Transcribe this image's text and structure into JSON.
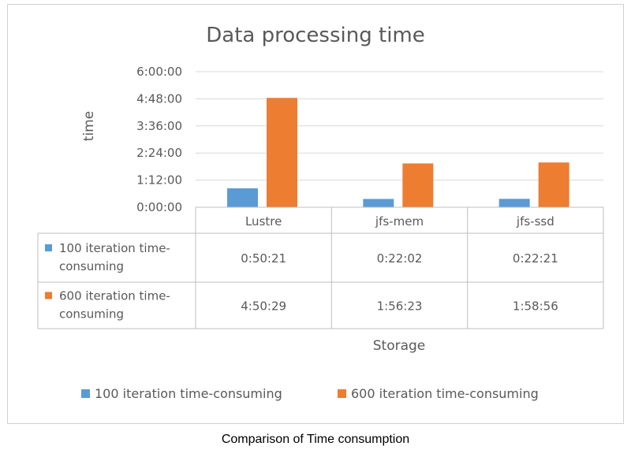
{
  "chart_data": {
    "type": "bar",
    "title": "Data processing time",
    "xlabel": "Storage",
    "ylabel": "time",
    "categories": [
      "Lustre",
      "jfs-mem",
      "jfs-ssd"
    ],
    "series": [
      {
        "name": "100 iteration time-consuming",
        "table_label": [
          "100 iteration time-",
          "consuming"
        ],
        "values": [
          "0:50:21",
          "0:22:02",
          "0:22:21"
        ],
        "color": "#5b9bd5"
      },
      {
        "name": "600 iteration time-consuming",
        "table_label": [
          "600 iteration time-",
          "consuming"
        ],
        "values": [
          "4:50:29",
          "1:56:23",
          "1:58:56"
        ],
        "color": "#ed7d31"
      }
    ],
    "yticks": [
      "0:00:00",
      "1:12:00",
      "2:24:00",
      "3:36:00",
      "4:48:00",
      "6:00:00"
    ],
    "ylim": [
      "0:00:00",
      "6:00:00"
    ],
    "grid": true,
    "legend": "bottom",
    "data_table": true
  },
  "caption": "Comparison of Time consumption"
}
